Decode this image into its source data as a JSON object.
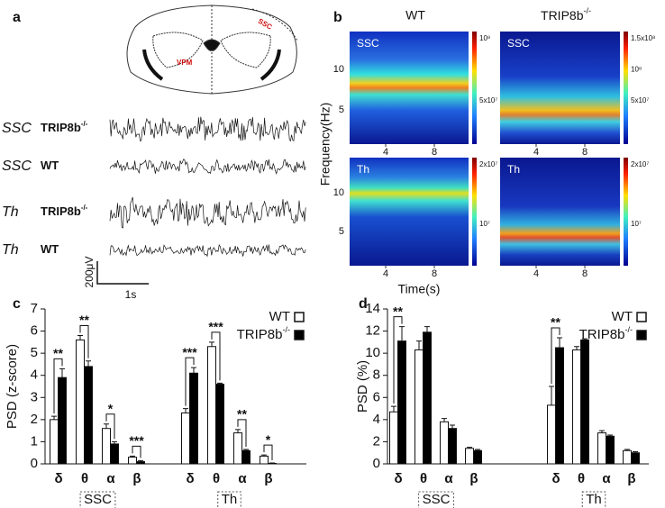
{
  "panel_labels": [
    "a",
    "b",
    "c",
    "d"
  ],
  "panel_a": {
    "brain_labels": [
      "SSC",
      "VPM"
    ],
    "traces": [
      {
        "region": "SSC",
        "genotype": "TRIP8b",
        "superscript": "-/-"
      },
      {
        "region": "SSC",
        "genotype": "WT"
      },
      {
        "region": "Th",
        "genotype": "TRIP8b",
        "superscript": "-/-"
      },
      {
        "region": "Th",
        "genotype": "WT"
      }
    ],
    "scale_bar": {
      "amplitude": "200μV",
      "time": "1s"
    }
  },
  "panel_b": {
    "columns": [
      {
        "title": "WT"
      },
      {
        "title": "TRIP8b",
        "superscript": "-/-"
      }
    ],
    "y_label": "Frequency(Hz)",
    "x_label": "Time(s)",
    "yticks": [
      5,
      10
    ],
    "xticks": [
      4,
      8
    ],
    "plots": [
      {
        "label": "SSC",
        "colorbar": [
          "10⁸",
          "5x10⁷"
        ]
      },
      {
        "label": "SSC",
        "colorbar": [
          "1.5x10⁸",
          "10⁸",
          "5x10⁷"
        ]
      },
      {
        "label": "Th",
        "colorbar": [
          "2x10⁷",
          "10⁷"
        ]
      },
      {
        "label": "Th",
        "colorbar": [
          "2x10⁷",
          "10⁷"
        ]
      }
    ]
  },
  "chart_data": [
    {
      "type": "bar",
      "y_label": "PSD (z-score)",
      "categories": [
        "δ",
        "θ",
        "α",
        "β",
        "δ",
        "θ",
        "α",
        "β"
      ],
      "groups": [
        "SSC",
        "Th"
      ],
      "series": [
        {
          "name": "WT",
          "color": "#ffffff",
          "values": [
            2.0,
            5.6,
            1.6,
            0.3,
            2.3,
            5.3,
            1.4,
            0.35
          ],
          "errors": [
            0.15,
            0.2,
            0.2,
            0.05,
            0.2,
            0.2,
            0.15,
            0.05
          ]
        },
        {
          "name": "TRIP8b",
          "name_superscript": "-/-",
          "color": "#000000",
          "values": [
            3.9,
            4.4,
            0.9,
            0.1,
            4.1,
            3.6,
            0.6,
            0.02
          ],
          "errors": [
            0.4,
            0.25,
            0.1,
            0.05,
            0.25,
            0.05,
            0.05,
            0.02
          ]
        }
      ],
      "significance": [
        "**",
        "**",
        "*",
        "***",
        "***",
        "***",
        "**",
        "*"
      ],
      "ylim": [
        0,
        7
      ],
      "yticks": [
        0,
        1,
        2,
        3,
        4,
        5,
        6,
        7
      ]
    },
    {
      "type": "bar",
      "y_label": "PSD (%)",
      "categories": [
        "δ",
        "θ",
        "α",
        "β",
        "δ",
        "θ",
        "α",
        "β"
      ],
      "groups": [
        "SSC",
        "Th"
      ],
      "series": [
        {
          "name": "WT",
          "color": "#ffffff",
          "values": [
            4.7,
            10.3,
            3.8,
            1.4,
            5.3,
            10.3,
            2.8,
            1.2
          ],
          "errors": [
            0.5,
            0.8,
            0.3,
            0.1,
            1.7,
            0.3,
            0.2,
            0.1
          ]
        },
        {
          "name": "TRIP8b",
          "name_superscript": "-/-",
          "color": "#000000",
          "values": [
            11.1,
            11.9,
            3.2,
            1.2,
            10.5,
            11.2,
            2.5,
            1.0
          ],
          "errors": [
            1.3,
            0.5,
            0.3,
            0.1,
            0.9,
            0.1,
            0.1,
            0.1
          ]
        }
      ],
      "significance": [
        "**",
        null,
        null,
        null,
        "**",
        null,
        null,
        null
      ],
      "ylim": [
        0,
        14
      ],
      "yticks": [
        0,
        2,
        4,
        6,
        8,
        10,
        12,
        14
      ]
    }
  ]
}
